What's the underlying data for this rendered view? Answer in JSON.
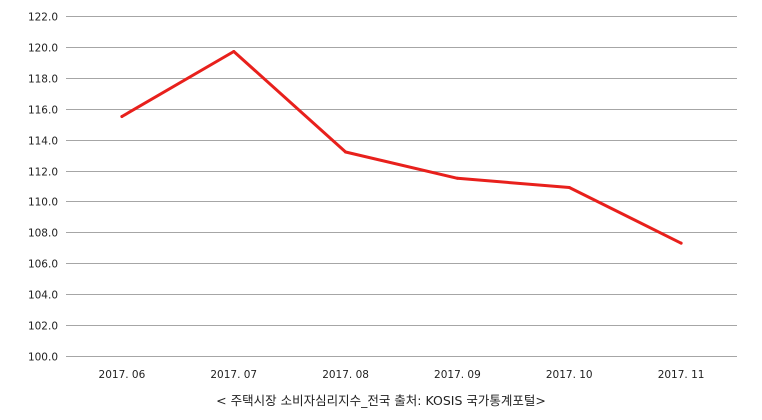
{
  "chart_data": {
    "type": "line",
    "categories": [
      "2017. 06",
      "2017. 07",
      "2017. 08",
      "2017. 09",
      "2017. 10",
      "2017. 11"
    ],
    "series": [
      {
        "values": [
          115.5,
          119.7,
          113.2,
          111.5,
          110.9,
          107.3
        ],
        "color": "#e8201c"
      }
    ],
    "y_ticks": [
      "100.0",
      "102.0",
      "104.0",
      "106.0",
      "108.0",
      "110.0",
      "112.0",
      "114.0",
      "116.0",
      "118.0",
      "120.0",
      "122.0"
    ],
    "ylim": [
      100,
      122
    ],
    "grid": true,
    "legend": "none",
    "caption": "< 주택시장 소비자심리지수_전국 출처: KOSIS 국가통계포털>"
  },
  "colors": {
    "gridline": "#a6a6a6",
    "line": "#e8201c",
    "text": "#222222"
  }
}
